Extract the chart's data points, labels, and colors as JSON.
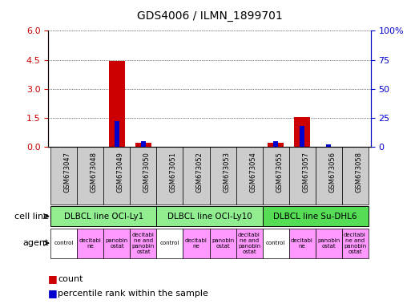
{
  "title": "GDS4006 / ILMN_1899701",
  "samples": [
    "GSM673047",
    "GSM673048",
    "GSM673049",
    "GSM673050",
    "GSM673051",
    "GSM673052",
    "GSM673053",
    "GSM673054",
    "GSM673055",
    "GSM673057",
    "GSM673056",
    "GSM673058"
  ],
  "red_values": [
    0,
    0,
    4.45,
    0.22,
    0,
    0,
    0,
    0,
    0.2,
    1.55,
    0,
    0
  ],
  "blue_values_pct": [
    0,
    0,
    22,
    5,
    0,
    0,
    0,
    0,
    5,
    18,
    2,
    0
  ],
  "ylim_left": [
    0,
    6
  ],
  "ylim_right": [
    0,
    100
  ],
  "yticks_left": [
    0,
    1.5,
    3,
    4.5,
    6
  ],
  "yticks_right": [
    0,
    25,
    50,
    75,
    100
  ],
  "ytick_labels_right": [
    "0",
    "25",
    "50",
    "75",
    "100%"
  ],
  "cell_lines": [
    {
      "label": "DLBCL line OCI-Ly1",
      "start": 0,
      "end": 4,
      "color": "#90ee90"
    },
    {
      "label": "DLBCL line OCI-Ly10",
      "start": 4,
      "end": 8,
      "color": "#90ee90"
    },
    {
      "label": "DLBCL line Su-DHL6",
      "start": 8,
      "end": 12,
      "color": "#55dd55"
    }
  ],
  "agents": [
    "control",
    "decitabi\nne",
    "panobin\nostat",
    "decitabi\nne and\npanobin\nostat",
    "control",
    "decitabi\nne",
    "panobin\nostat",
    "decitabi\nne and\npanobin\nostat",
    "control",
    "decitabi\nne",
    "panobin\nostat",
    "decitabi\nne and\npanobin\nostat"
  ],
  "agent_colors": [
    "#ffffff",
    "#ff99ff",
    "#ff99ff",
    "#ff99ff",
    "#ffffff",
    "#ff99ff",
    "#ff99ff",
    "#ff99ff",
    "#ffffff",
    "#ff99ff",
    "#ff99ff",
    "#ff99ff"
  ],
  "red_color": "#cc0000",
  "blue_color": "#0000cc",
  "bar_width": 0.6,
  "blue_bar_width": 0.18,
  "plot_bg": "#ffffff",
  "grid_color": "#000000",
  "sample_bg": "#cccccc",
  "cell_line_label": "cell line",
  "agent_label": "agent",
  "legend_count": "count",
  "legend_pct": "percentile rank within the sample"
}
